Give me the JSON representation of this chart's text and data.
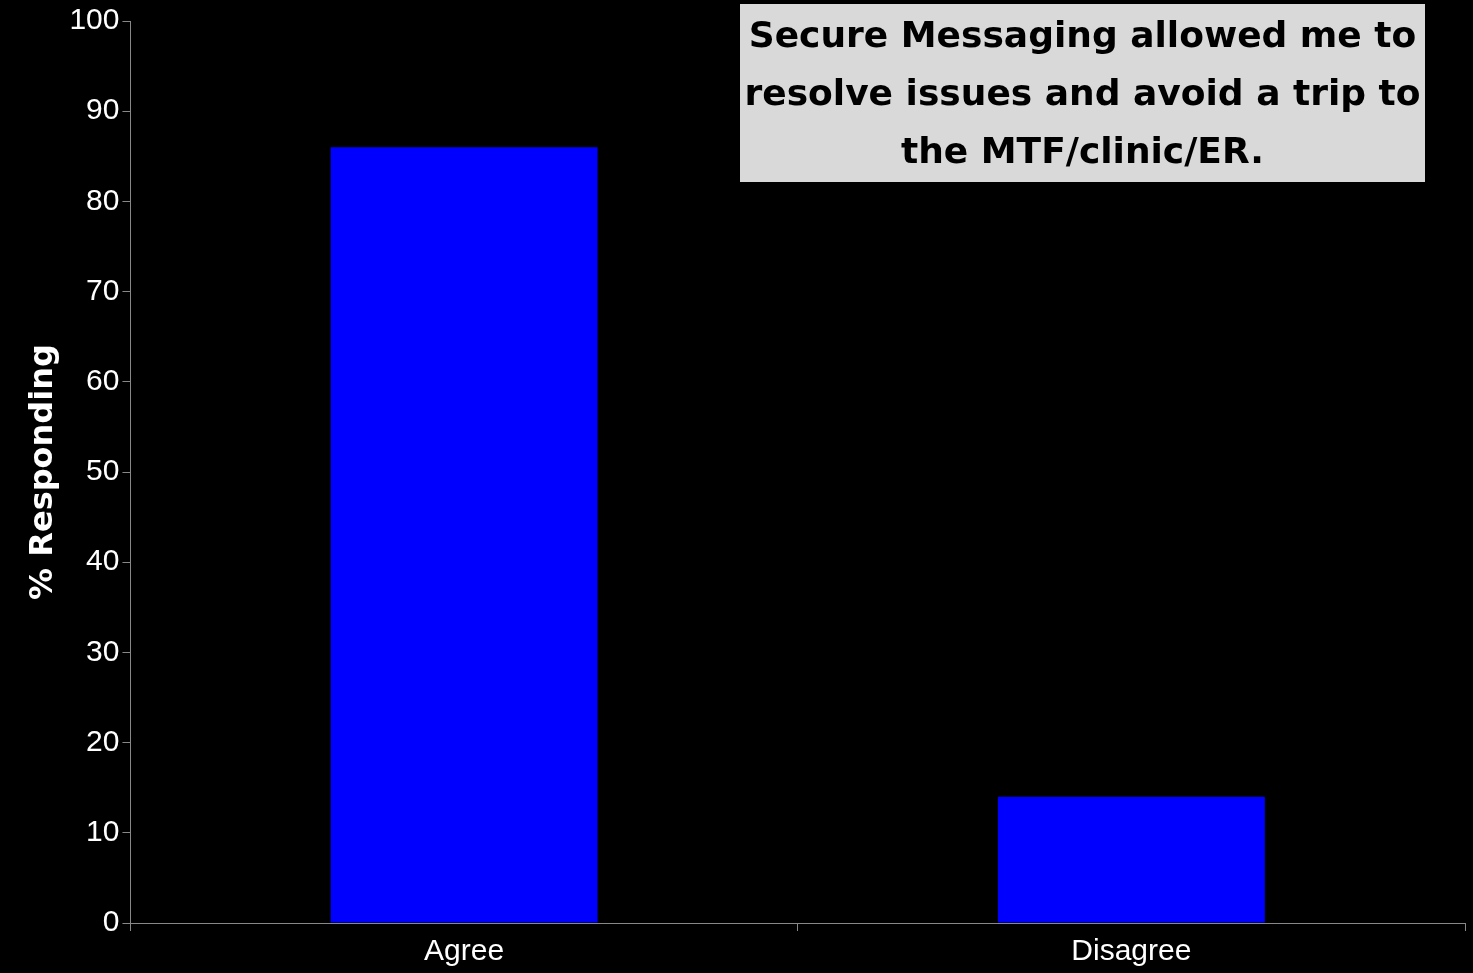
{
  "chart_data": {
    "type": "bar",
    "title": "Secure Messaging allowed me to resolve issues and avoid a trip to the MTF/clinic/ER.",
    "ylabel": "% Responding",
    "categories": [
      "Agree",
      "Disagree"
    ],
    "values": [
      86,
      14
    ],
    "color": "#0000ff",
    "ylim": [
      0,
      100
    ],
    "yticks": [
      0,
      10,
      20,
      30,
      40,
      50,
      60,
      70,
      80,
      90,
      100
    ],
    "grid": false,
    "legend": false
  }
}
